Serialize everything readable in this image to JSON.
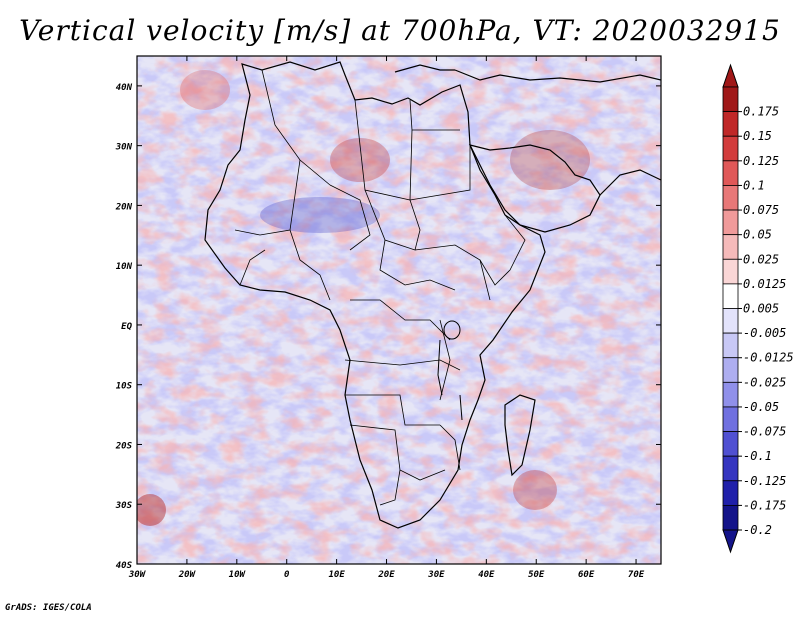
{
  "title": "Vertical velocity [m/s] at 700hPa, VT: 2020032915",
  "credit": "GrADS: IGES/COLA",
  "map": {
    "lat_labels": [
      "40N",
      "30N",
      "20N",
      "10N",
      "EQ",
      "10S",
      "20S",
      "30S",
      "40S"
    ],
    "lon_labels": [
      "30W",
      "20W",
      "10W",
      "0",
      "10E",
      "20E",
      "30E",
      "40E",
      "50E",
      "60E",
      "70E"
    ],
    "region": {
      "lon_min": -30,
      "lon_max": 75,
      "lat_min": -40,
      "lat_max": 45
    },
    "land_color": "#e8e8f4",
    "border_color": "#000000"
  },
  "colorbar": {
    "labels": [
      "0.175",
      "0.15",
      "0.125",
      "0.1",
      "0.075",
      "0.05",
      "0.025",
      "0.0125",
      "0.005",
      "-0.005",
      "-0.0125",
      "-0.025",
      "-0.05",
      "-0.075",
      "-0.1",
      "-0.125",
      "-0.175",
      "-0.2"
    ],
    "colors": [
      "#a01818",
      "#c02828",
      "#d23c3c",
      "#e05858",
      "#e87878",
      "#f09a9a",
      "#f5baba",
      "#fad6d6",
      "#ffffff",
      "#e3e3fb",
      "#c8c8f5",
      "#aeaef0",
      "#9090ea",
      "#7070e0",
      "#5050d2",
      "#3535c0",
      "#2020aa",
      "#14148a"
    ]
  }
}
